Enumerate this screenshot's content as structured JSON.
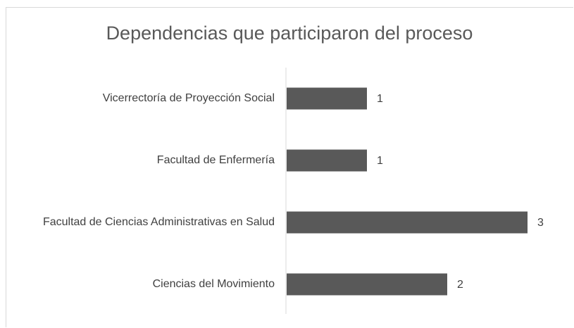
{
  "chart_data": {
    "type": "bar",
    "orientation": "horizontal",
    "title": "Dependencias que participaron del proceso",
    "categories": [
      "Vicerrectoría de Proyección Social",
      "Facultad de Enfermería",
      "Facultad de Ciencias Administrativas en Salud",
      "Ciencias del Movimiento"
    ],
    "values": [
      1,
      1,
      3,
      2
    ],
    "color": "#595959"
  }
}
